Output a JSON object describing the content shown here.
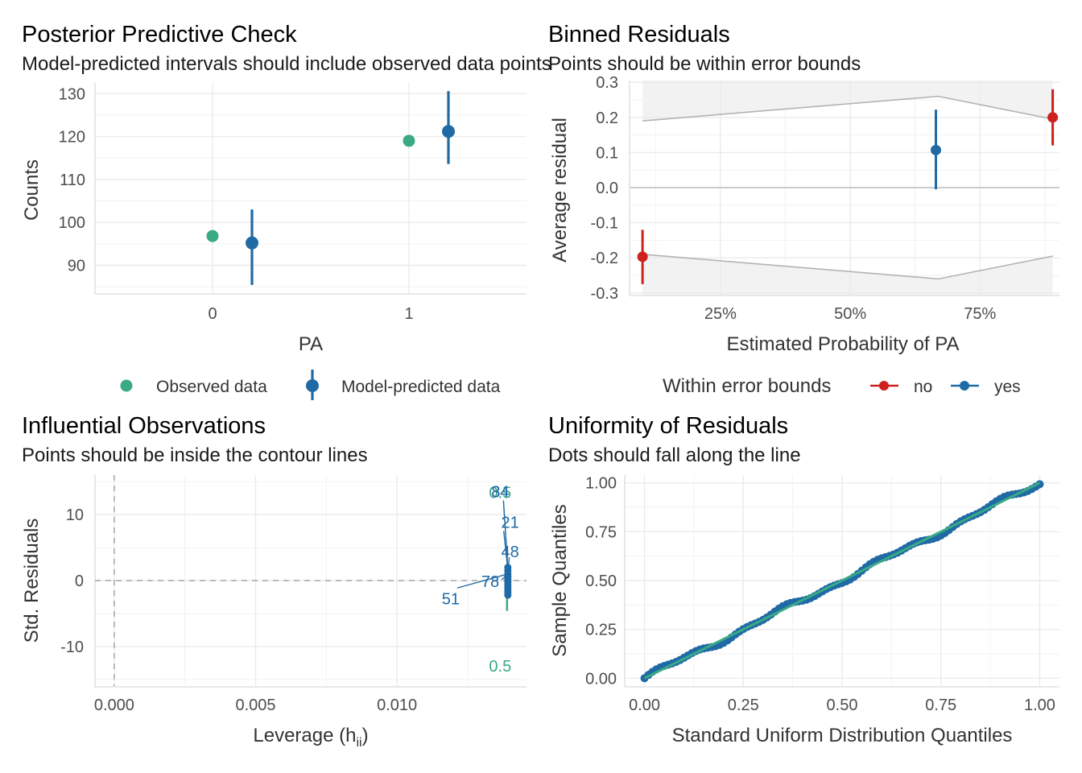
{
  "colors": {
    "observed": "#3aaa85",
    "predicted": "#1f6aa5",
    "no": "#cd201f",
    "yes": "#1f6aa5",
    "bounds_line": "#b3b3b3",
    "bounds_fill": "#f2f2f2",
    "ref_line": "#bfbfbf"
  },
  "chart_data": [
    {
      "panel": "ppc",
      "type": "scatter",
      "title": "Posterior Predictive Check",
      "subtitle": "Model-predicted intervals should include observed data points",
      "xlabel": "PA",
      "ylabel": "Counts",
      "categories": [
        "0",
        "1"
      ],
      "ylim": [
        83.5,
        132.5
      ],
      "yticks": [
        90,
        100,
        110,
        120,
        130
      ],
      "grid": true,
      "legend_position": "bottom",
      "series": [
        {
          "name": "Observed data",
          "values": [
            96.8,
            119
          ]
        },
        {
          "name": "Model-predicted data",
          "values": [
            95.2,
            121.2
          ],
          "lower": [
            85.4,
            113.6
          ],
          "upper": [
            103,
            130.6
          ]
        }
      ]
    },
    {
      "panel": "binned",
      "type": "scatter",
      "title": "Binned Residuals",
      "subtitle": "Points should be within error bounds",
      "xlabel": "Estimated Probability of PA",
      "ylabel": "Average residual",
      "xlim": [
        0.075,
        0.903
      ],
      "ylim": [
        -0.305,
        0.305
      ],
      "xticks": [
        0.25,
        0.5,
        0.75
      ],
      "xticklabels": [
        "25%",
        "50%",
        "75%"
      ],
      "yticks": [
        -0.3,
        -0.2,
        -0.1,
        0.0,
        0.1,
        0.2,
        0.3
      ],
      "yticklabels": [
        "-0.3",
        "-0.2",
        "-0.1",
        "0.0",
        "0.1",
        "0.2",
        "0.3"
      ],
      "legend_title": "Within error bounds",
      "legend_position": "bottom",
      "legend_entries": [
        "no",
        "yes"
      ],
      "bounds": {
        "x": [
          0.1,
          0.67,
          0.89
        ],
        "upper": [
          0.19,
          0.26,
          0.195
        ],
        "lower": [
          -0.19,
          -0.26,
          -0.195
        ]
      },
      "points": [
        {
          "x": 0.1,
          "y": -0.197,
          "lower": -0.275,
          "upper": -0.12,
          "group": "no"
        },
        {
          "x": 0.665,
          "y": 0.107,
          "lower": -0.005,
          "upper": 0.222,
          "group": "yes"
        },
        {
          "x": 0.89,
          "y": 0.2,
          "lower": 0.12,
          "upper": 0.28,
          "group": "no"
        }
      ]
    },
    {
      "panel": "influence",
      "type": "scatter",
      "title": "Influential Observations",
      "subtitle": "Points should be inside the contour lines",
      "xlabel": "Leverage (h",
      "xlabel_sub": "ii",
      "xlabel_end": ")",
      "ylabel": "Std. Residuals",
      "xlim": [
        -0.00068,
        0.01458
      ],
      "ylim": [
        -16,
        16
      ],
      "xticks": [
        0.0,
        0.005,
        0.01
      ],
      "xticklabels": [
        "0.000",
        "0.005",
        "0.010"
      ],
      "yticks": [
        -10,
        0,
        10
      ],
      "yticklabels": [
        "-10",
        "0",
        "10"
      ],
      "contour_labels": [
        {
          "text": "0.5",
          "x": 0.01365,
          "y": 13.5
        },
        {
          "text": "0.5",
          "x": 0.01365,
          "y": -12.8
        }
      ],
      "point_labels": [
        {
          "text": "84",
          "x": 0.01365,
          "y": 13.6,
          "px": 0.01392,
          "py": 2.0
        },
        {
          "text": "34",
          "x": 0.01365,
          "y": 13.6,
          "px": 0.01392,
          "py": 1.8
        },
        {
          "text": "21",
          "x": 0.014,
          "y": 9.0,
          "px": 0.01392,
          "py": 1.6
        },
        {
          "text": "48",
          "x": 0.014,
          "y": 4.5,
          "px": 0.01392,
          "py": 1.2
        },
        {
          "text": "78",
          "x": 0.0133,
          "y": 0.0,
          "px": 0.01392,
          "py": 1.0
        },
        {
          "text": "51",
          "x": 0.0119,
          "y": -2.6,
          "px": 0.01392,
          "py": 1.0
        }
      ],
      "points_x": 0.01392,
      "points_y": [
        2.0,
        1.5,
        1.0,
        0.6,
        0.2,
        -0.2,
        -0.6,
        -1.0,
        -1.4,
        -1.8,
        -2.2
      ]
    },
    {
      "panel": "qq",
      "type": "scatter",
      "title": "Uniformity of Residuals",
      "subtitle": "Dots should fall along the line",
      "xlabel": "Standard Uniform Distribution Quantiles",
      "ylabel": "Sample Quantiles",
      "xlim": [
        -0.05,
        1.05
      ],
      "ylim": [
        -0.04,
        1.04
      ],
      "xticks": [
        0.0,
        0.25,
        0.5,
        0.75,
        1.0
      ],
      "xticklabels": [
        "0.00",
        "0.25",
        "0.50",
        "0.75",
        "1.00"
      ],
      "yticks": [
        0.0,
        0.25,
        0.5,
        0.75,
        1.0
      ],
      "yticklabels": [
        "0.00",
        "0.25",
        "0.50",
        "0.75",
        "1.00"
      ],
      "reference_line": [
        [
          0,
          0
        ],
        [
          1,
          1
        ]
      ],
      "sample_points": 100
    }
  ]
}
